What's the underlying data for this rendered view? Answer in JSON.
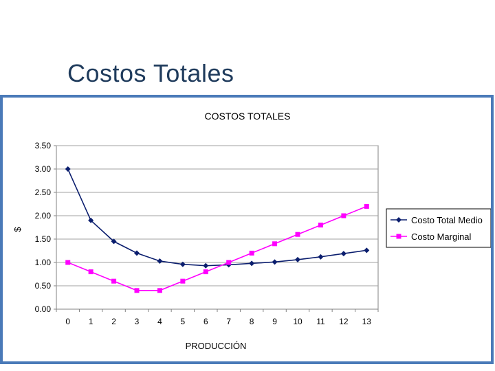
{
  "slide": {
    "title": "Costos Totales"
  },
  "chart_data": {
    "type": "line",
    "title": "COSTOS TOTALES",
    "xlabel": "PRODUCCIÓN",
    "ylabel": "$",
    "x": [
      0,
      1,
      2,
      3,
      4,
      5,
      6,
      7,
      8,
      9,
      10,
      11,
      12,
      13
    ],
    "ylim": [
      0,
      3.5
    ],
    "yticks": [
      "0.00",
      "0.50",
      "1.00",
      "1.50",
      "2.00",
      "2.50",
      "3.00",
      "3.50"
    ],
    "grid": true,
    "legend_position": "right",
    "series": [
      {
        "name": "Costo Total Medio",
        "color": "#0b1e6e",
        "marker": "diamond",
        "values": [
          3.0,
          1.9,
          1.45,
          1.2,
          1.03,
          0.96,
          0.93,
          0.95,
          0.98,
          1.01,
          1.06,
          1.12,
          1.19,
          1.26
        ]
      },
      {
        "name": "Costo Marginal",
        "color": "#ff00ff",
        "marker": "square",
        "values": [
          1.0,
          0.8,
          0.6,
          0.4,
          0.4,
          0.6,
          0.8,
          1.0,
          1.2,
          1.4,
          1.6,
          1.8,
          2.0,
          2.2
        ]
      }
    ]
  }
}
